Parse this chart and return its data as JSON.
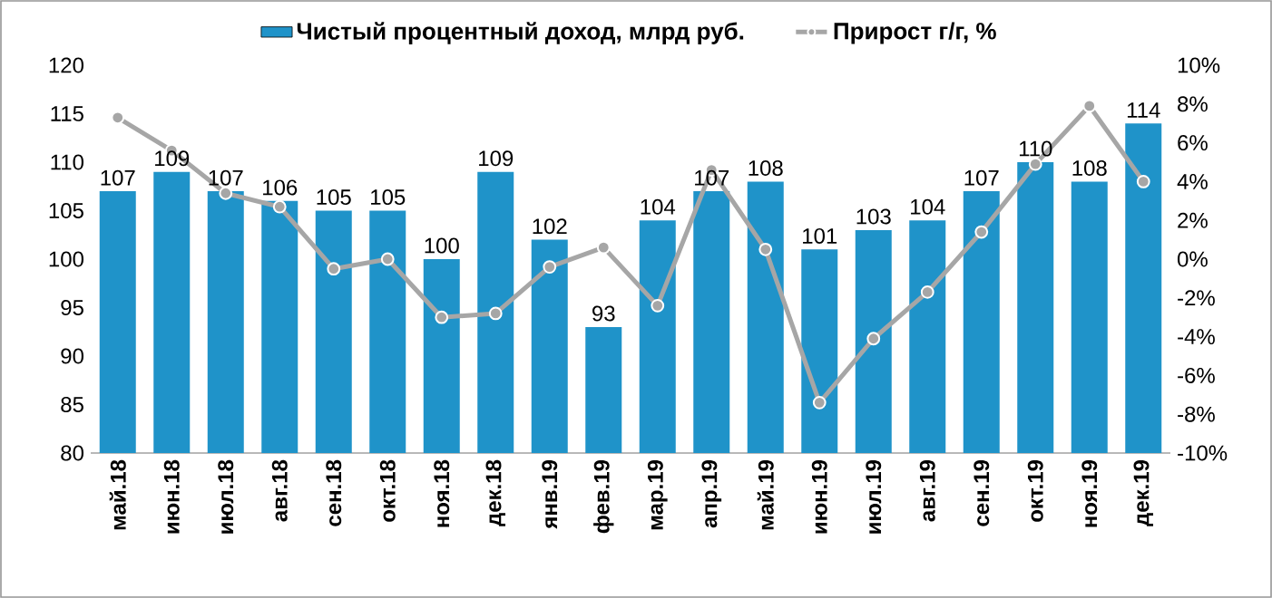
{
  "chart_data": {
    "type": "bar",
    "categories": [
      "май.18",
      "июн.18",
      "июл.18",
      "авг.18",
      "сен.18",
      "окт.18",
      "ноя.18",
      "дек.18",
      "янв.19",
      "фев.19",
      "мар.19",
      "апр.19",
      "май.19",
      "июн.19",
      "июл.19",
      "авг.19",
      "сен.19",
      "окт.19",
      "ноя.19",
      "дек.19"
    ],
    "series": [
      {
        "name": "Чистый процентный доход, млрд руб.",
        "color": "#1f93c9",
        "values": [
          107,
          109,
          107,
          106,
          105,
          105,
          100,
          109,
          102,
          93,
          104,
          107,
          108,
          101,
          103,
          104,
          107,
          110,
          108,
          114
        ],
        "value_labels": [
          "107",
          "109",
          "107",
          "106",
          "105",
          "105",
          "100",
          "109",
          "102",
          "93",
          "104",
          "107",
          "108",
          "101",
          "103",
          "104",
          "107",
          "110",
          "108",
          "114"
        ]
      },
      {
        "name": "Прирост г/г, %",
        "type": "line",
        "axis": "y2",
        "color": "#a6a6a6",
        "marker": "circle",
        "values": [
          7.3,
          5.6,
          3.4,
          2.7,
          -0.5,
          0.0,
          -3.0,
          -2.8,
          -0.4,
          0.6,
          -2.4,
          4.6,
          0.5,
          -7.4,
          -4.1,
          -1.7,
          1.4,
          4.9,
          7.9,
          4.0
        ]
      }
    ],
    "ylim": [
      80,
      120
    ],
    "yticks": [
      80,
      85,
      90,
      95,
      100,
      105,
      110,
      115,
      120
    ],
    "y2lim": [
      -10,
      10
    ],
    "y2ticks": [
      {
        "value": -10,
        "label": "-10%"
      },
      {
        "value": -8,
        "label": "-8%"
      },
      {
        "value": -6,
        "label": "-6%"
      },
      {
        "value": -4,
        "label": "-4%"
      },
      {
        "value": -2,
        "label": "-2%"
      },
      {
        "value": 0,
        "label": "0%"
      },
      {
        "value": 2,
        "label": "2%"
      },
      {
        "value": 4,
        "label": "4%"
      },
      {
        "value": 6,
        "label": "6%"
      },
      {
        "value": 8,
        "label": "8%"
      },
      {
        "value": 10,
        "label": "10%"
      }
    ],
    "grid": false,
    "legend": "top"
  }
}
